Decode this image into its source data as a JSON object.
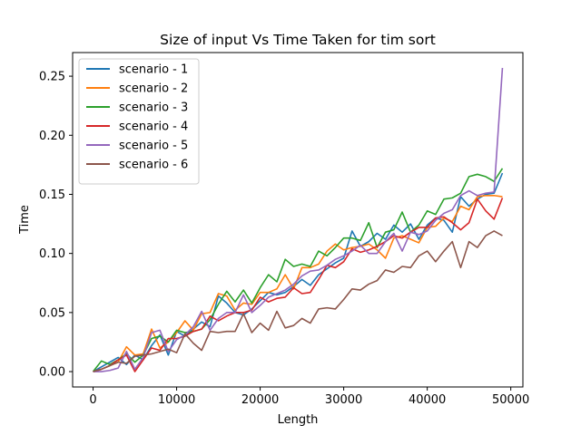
{
  "chart_data": {
    "type": "line",
    "title": "Size of input Vs Time Taken for tim sort",
    "xlabel": "Length",
    "ylabel": "Time",
    "xlim": [
      -2450,
      51450
    ],
    "ylim": [
      -0.013,
      0.27
    ],
    "xticks": [
      0,
      10000,
      20000,
      30000,
      40000,
      50000
    ],
    "xtick_labels": [
      "0",
      "10000",
      "20000",
      "30000",
      "40000",
      "50000"
    ],
    "yticks": [
      0.0,
      0.05,
      0.1,
      0.15,
      0.2,
      0.25
    ],
    "ytick_labels": [
      "0.00",
      "0.05",
      "0.10",
      "0.15",
      "0.20",
      "0.25"
    ],
    "grid": false,
    "legend_position": "top-left",
    "x": [
      0,
      1000,
      2000,
      3000,
      4000,
      5000,
      6000,
      7000,
      8000,
      9000,
      10000,
      11000,
      12000,
      13000,
      14000,
      15000,
      16000,
      17000,
      18000,
      19000,
      20000,
      21000,
      22000,
      23000,
      24000,
      25000,
      26000,
      27000,
      28000,
      29000,
      30000,
      31000,
      32000,
      33000,
      34000,
      35000,
      36000,
      37000,
      38000,
      39000,
      40000,
      41000,
      42000,
      43000,
      44000,
      45000,
      46000,
      47000,
      48000,
      49000
    ],
    "series": [
      {
        "name": "scenario - 1",
        "color": "#1f77b4",
        "values": [
          0.0,
          0.004,
          0.008,
          0.012,
          0.006,
          0.014,
          0.01,
          0.022,
          0.031,
          0.014,
          0.034,
          0.03,
          0.036,
          0.042,
          0.038,
          0.064,
          0.058,
          0.05,
          0.048,
          0.053,
          0.06,
          0.067,
          0.065,
          0.067,
          0.072,
          0.078,
          0.073,
          0.082,
          0.087,
          0.092,
          0.096,
          0.119,
          0.106,
          0.11,
          0.117,
          0.112,
          0.124,
          0.118,
          0.125,
          0.112,
          0.124,
          0.13,
          0.128,
          0.118,
          0.148,
          0.14,
          0.146,
          0.15,
          0.151,
          0.168
        ]
      },
      {
        "name": "scenario - 2",
        "color": "#ff7f0e",
        "values": [
          0.0,
          0.002,
          0.005,
          0.008,
          0.021,
          0.014,
          0.015,
          0.036,
          0.02,
          0.025,
          0.033,
          0.043,
          0.035,
          0.049,
          0.05,
          0.066,
          0.064,
          0.052,
          0.058,
          0.057,
          0.067,
          0.067,
          0.07,
          0.082,
          0.07,
          0.088,
          0.088,
          0.091,
          0.102,
          0.108,
          0.103,
          0.105,
          0.106,
          0.108,
          0.103,
          0.096,
          0.113,
          0.115,
          0.112,
          0.109,
          0.122,
          0.123,
          0.13,
          0.127,
          0.14,
          0.137,
          0.148,
          0.149,
          0.149,
          0.148
        ]
      },
      {
        "name": "scenario - 3",
        "color": "#2ca02c",
        "values": [
          0.0,
          0.009,
          0.006,
          0.01,
          0.015,
          0.008,
          0.014,
          0.028,
          0.03,
          0.025,
          0.035,
          0.033,
          0.034,
          0.036,
          0.044,
          0.057,
          0.068,
          0.059,
          0.069,
          0.058,
          0.071,
          0.082,
          0.076,
          0.095,
          0.089,
          0.091,
          0.089,
          0.102,
          0.098,
          0.105,
          0.113,
          0.113,
          0.111,
          0.126,
          0.105,
          0.118,
          0.12,
          0.135,
          0.118,
          0.124,
          0.136,
          0.133,
          0.146,
          0.147,
          0.151,
          0.165,
          0.167,
          0.165,
          0.161,
          0.172
        ]
      },
      {
        "name": "scenario - 4",
        "color": "#d62728",
        "values": [
          0.0,
          0.002,
          0.005,
          0.01,
          0.014,
          0.0,
          0.01,
          0.02,
          0.018,
          0.028,
          0.028,
          0.03,
          0.034,
          0.036,
          0.047,
          0.043,
          0.047,
          0.05,
          0.05,
          0.052,
          0.063,
          0.059,
          0.062,
          0.063,
          0.071,
          0.066,
          0.067,
          0.078,
          0.09,
          0.088,
          0.093,
          0.104,
          0.101,
          0.103,
          0.106,
          0.11,
          0.115,
          0.113,
          0.118,
          0.122,
          0.122,
          0.13,
          0.131,
          0.126,
          0.12,
          0.126,
          0.146,
          0.136,
          0.129,
          0.147
        ]
      },
      {
        "name": "scenario - 5",
        "color": "#9467bd",
        "values": [
          0.0,
          0.0,
          0.001,
          0.003,
          0.017,
          0.002,
          0.012,
          0.033,
          0.035,
          0.017,
          0.027,
          0.031,
          0.038,
          0.051,
          0.035,
          0.045,
          0.05,
          0.05,
          0.065,
          0.05,
          0.056,
          0.063,
          0.066,
          0.069,
          0.074,
          0.081,
          0.085,
          0.086,
          0.09,
          0.095,
          0.098,
          0.102,
          0.107,
          0.1,
          0.1,
          0.11,
          0.117,
          0.102,
          0.118,
          0.116,
          0.119,
          0.128,
          0.134,
          0.137,
          0.149,
          0.153,
          0.149,
          0.151,
          0.152,
          0.257
        ]
      },
      {
        "name": "scenario - 6",
        "color": "#8c564b",
        "values": [
          0.0,
          0.002,
          0.005,
          0.008,
          0.007,
          0.013,
          0.014,
          0.015,
          0.017,
          0.019,
          0.016,
          0.032,
          0.024,
          0.018,
          0.034,
          0.033,
          0.034,
          0.034,
          0.049,
          0.033,
          0.041,
          0.035,
          0.051,
          0.037,
          0.039,
          0.045,
          0.041,
          0.053,
          0.054,
          0.053,
          0.061,
          0.07,
          0.069,
          0.074,
          0.077,
          0.086,
          0.084,
          0.089,
          0.088,
          0.098,
          0.102,
          0.093,
          0.102,
          0.11,
          0.088,
          0.11,
          0.105,
          0.115,
          0.119,
          0.115
        ]
      }
    ]
  }
}
